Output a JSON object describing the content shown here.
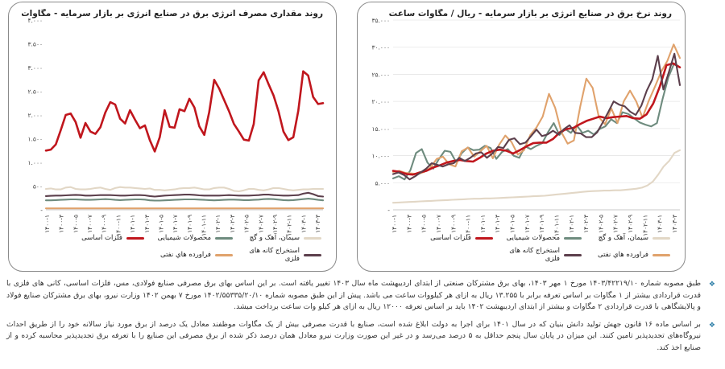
{
  "x_labels": [
    "۱۴۰۰-۱",
    "۱۴۰۰-۳",
    "۱۴۰۰-۵",
    "۱۴۰۰-۷",
    "۱۴۰۰-۹",
    "۱۴۰۰-۱۱",
    "۱۴۰۱-۱",
    "۱۴۰۱-۳",
    "۱۴۰۱-۵",
    "۱۴۰۱-۷",
    "۱۴۰۱-۹",
    "۱۴۰۱-۱۱",
    "۱۴۰۲-۱",
    "۱۴۰۲-۳",
    "۱۴۰۲-۵",
    "۱۴۰۲-۷",
    "۱۴۰۲-۹",
    "۱۴۰۲-۱۱",
    "۱۴۰۳-۱",
    "۱۴۰۳-۳"
  ],
  "colors": {
    "metals": "#c0161d",
    "cement": "#e2d7c6",
    "chem": "#6e8b7e",
    "mining": "#5c3f4c",
    "oil": "#e0a26c"
  },
  "chart_data": [
    {
      "type": "line",
      "title": "روند مقداری مصرف انرژی برق در صنایع انرژی بر بازار سرمایه  - مگاوات ساعت",
      "y_ticks": [
        "۴.۰۰۰",
        "۳.۵۰۰",
        "۳.۰۰۰",
        "۲.۵۰۰",
        "۲.۰۰۰",
        "۱.۵۰۰",
        "۱.۰۰۰",
        "۵۰۰",
        "-"
      ],
      "ylim": [
        0,
        4000
      ],
      "legend": [
        "سیمان، آهک و گچ",
        "محصولات شیمیایی",
        "فلزات اساسی",
        "استخراج کانه های فلزی",
        "فراورده هاي نفتی"
      ],
      "series": [
        {
          "name": "فلزات اساسی",
          "color_key": "metals",
          "values": [
            1250,
            1270,
            1380,
            1680,
            2000,
            2030,
            1850,
            1520,
            1830,
            1650,
            1600,
            1740,
            2050,
            2270,
            2220,
            1920,
            1820,
            2100,
            1900,
            1720,
            1780,
            1470,
            1230,
            1530,
            2100,
            1750,
            1730,
            2120,
            2080,
            2340,
            2160,
            1760,
            1580,
            2060,
            2740,
            2560,
            2320,
            2080,
            1810,
            1650,
            1480,
            1460,
            1810,
            2730,
            2900,
            2650,
            2410,
            2080,
            1650,
            1470,
            1530,
            2090,
            2920,
            2830,
            2380,
            2230,
            2250
          ]
        },
        {
          "name": "سیمان، آهک و گچ",
          "color_key": "cement",
          "values": [
            440,
            450,
            430,
            430,
            470,
            480,
            440,
            430,
            430,
            440,
            460,
            470,
            440,
            420,
            460,
            480,
            470,
            470,
            460,
            450,
            440,
            450,
            420,
            420,
            410,
            420,
            430,
            450,
            460,
            460,
            470,
            450,
            430,
            430,
            460,
            470,
            470,
            440,
            400,
            390,
            410,
            440,
            440,
            420,
            410,
            430,
            460,
            460,
            440,
            420,
            410,
            420,
            430,
            430,
            440,
            440,
            440
          ]
        },
        {
          "name": "استخراج کانه های فلزی",
          "color_key": "mining",
          "values": [
            290,
            295,
            300,
            300,
            305,
            310,
            315,
            310,
            300,
            300,
            305,
            310,
            310,
            310,
            305,
            300,
            300,
            305,
            310,
            310,
            305,
            290,
            280,
            290,
            300,
            305,
            310,
            315,
            320,
            320,
            315,
            305,
            300,
            300,
            300,
            300,
            305,
            310,
            305,
            300,
            300,
            300,
            305,
            310,
            320,
            320,
            310,
            305,
            300,
            300,
            305,
            310,
            340,
            360,
            330,
            290,
            280
          ]
        },
        {
          "name": "محصولات شیمیایی",
          "color_key": "chem",
          "values": [
            200,
            200,
            205,
            210,
            215,
            220,
            220,
            215,
            210,
            210,
            215,
            220,
            225,
            220,
            210,
            205,
            210,
            215,
            220,
            220,
            215,
            200,
            195,
            195,
            200,
            205,
            210,
            215,
            220,
            220,
            220,
            215,
            210,
            205,
            200,
            205,
            210,
            215,
            215,
            210,
            205,
            205,
            210,
            215,
            225,
            230,
            225,
            215,
            205,
            200,
            205,
            215,
            225,
            235,
            225,
            210,
            200
          ]
        },
        {
          "name": "فراورده هاي نفتی",
          "color_key": "oil",
          "values": [
            30,
            30,
            30,
            30,
            30,
            30,
            30,
            30,
            30,
            30,
            30,
            30,
            30,
            30,
            30,
            30,
            30,
            30,
            30,
            30,
            30,
            30,
            30,
            30,
            30,
            30,
            30,
            30,
            30,
            30,
            30,
            30,
            30,
            30,
            30,
            30,
            30,
            30,
            30,
            30,
            30,
            30,
            30,
            30,
            30,
            30,
            30,
            30,
            30,
            30,
            30,
            30,
            30,
            30,
            30,
            30,
            30
          ]
        }
      ]
    },
    {
      "type": "line",
      "title": "روند نرخ برق در صنایع انرژی بر بازار سرمایه  - ریال / مگاوات ساعت",
      "y_ticks": [
        "۳۵.۰۰۰",
        "۳۰.۰۰۰",
        "۲۵.۰۰۰",
        "۲۰.۰۰۰",
        "۱۵.۰۰۰",
        "۱۰.۰۰۰",
        "۵.۰۰۰",
        "-"
      ],
      "ylim": [
        0,
        35000
      ],
      "legend": [
        "سیمان، آهک و گچ",
        "محصولات شیمیایی",
        "فلزات اساسی",
        "فراورده هاي نفتی",
        "استخراج کانه های فلزی"
      ],
      "series": [
        {
          "name": "سیمان، آهک و گچ",
          "color_key": "cement",
          "values": [
            1300,
            1350,
            1400,
            1450,
            1500,
            1550,
            1600,
            1650,
            1700,
            1750,
            1800,
            1850,
            1900,
            1950,
            2000,
            2050,
            2050,
            2100,
            2100,
            2150,
            2200,
            2250,
            2300,
            2350,
            2400,
            2450,
            2500,
            2550,
            2600,
            2700,
            2800,
            2900,
            3000,
            3100,
            3200,
            3300,
            3400,
            3450,
            3500,
            3550,
            3550,
            3600,
            3600,
            3700,
            3800,
            3900,
            4100,
            4500,
            5200,
            6500,
            8000,
            9000,
            10500,
            11000
          ]
        },
        {
          "name": "محصولات شیمیایی",
          "color_key": "chem",
          "values": [
            5800,
            6200,
            5600,
            7300,
            10500,
            11200,
            8700,
            7600,
            9400,
            10900,
            10700,
            8800,
            10500,
            11500,
            11000,
            11100,
            11800,
            11400,
            9400,
            10700,
            11200,
            10000,
            9600,
            11700,
            11200,
            11800,
            12300,
            14300,
            16000,
            13800,
            14900,
            14200,
            15600,
            14200,
            14600,
            13900,
            14900,
            15400,
            16700,
            16000,
            18000,
            17700,
            16900,
            16100,
            15700,
            15400,
            16000,
            20500,
            24500,
            27000,
            26300
          ]
        },
        {
          "name": "فلزات اساسی",
          "color_key": "metals",
          "values": [
            7200,
            7000,
            6600,
            6500,
            6900,
            7200,
            7800,
            8200,
            8700,
            9000,
            9200,
            9000,
            8900,
            9600,
            10400,
            10900,
            11100,
            10900,
            10400,
            11000,
            11700,
            12300,
            12400,
            12400,
            13100,
            14300,
            14900,
            15100,
            15800,
            16400,
            16800,
            17200,
            16900,
            17100,
            17200,
            17300,
            16900,
            16800,
            17600,
            19600,
            22800,
            26700,
            27000,
            26300
          ]
        },
        {
          "name": "فراورده هاي نفتی",
          "color_key": "oil",
          "values": [
            7000,
            7200,
            6800,
            6700,
            6600,
            7000,
            7800,
            9400,
            9800,
            8400,
            8000,
            10800,
            11500,
            9800,
            10800,
            11800,
            9500,
            12000,
            13700,
            12500,
            10200,
            11000,
            13800,
            15200,
            17200,
            21400,
            18800,
            14300,
            12200,
            12800,
            19000,
            24200,
            22500,
            17100,
            15800,
            18700,
            16000,
            20000,
            22000,
            20000,
            17000,
            20100,
            22700,
            25500,
            27500,
            30500,
            28000
          ]
        },
        {
          "name": "استخراج کانه های فلزی",
          "color_key": "mining",
          "values": [
            6600,
            6900,
            6400,
            5600,
            6200,
            6900,
            7600,
            8600,
            8300,
            8000,
            8400,
            8600,
            9600,
            9000,
            9600,
            10400,
            10600,
            9600,
            10400,
            11600,
            11400,
            12900,
            13200,
            12100,
            12400,
            13600,
            14800,
            13600,
            13900,
            14600,
            13900,
            14900,
            15600,
            14200,
            14100,
            13400,
            13400,
            14300,
            16100,
            18000,
            20000,
            19400,
            19100,
            18100,
            17500,
            19200,
            22000,
            24100,
            28400,
            22200,
            25400,
            28800,
            23000
          ]
        }
      ]
    }
  ],
  "notes": [
    "طبق مصوبه شماره ۱۴۰۳/۴۲۲۱۹/۱۰ مورخ ۱ مهر ۱۴۰۳، بهای برق مشترکان صنعتی از ابتدای اردیبهشت ماه سال ۱۴۰۳ تغییر یافته است. بر این اساس بهای برق مصرفی صنایع فولادی، مس، فلزات اساسی، کانی های فلزی با قدرت قراردادی بیشتر از ۱ مگاوات بر اساس تعرفه برابر با ۱۳.۲۵۵ ریال به ازای هر کیلووات ساعت می باشد. پیش از این طبق مصوبه شماره ۱۴۰۲/۵۵۳۳۵/۲۰/۱۰ مورخ ۷ بهمن ۱۴۰۲ وزارت نیرو، بهای برق مشترکان صنایع فولاد و پالایشگاهی با قدرت قراردادی ۲ مگاوات و بیشتر از ابتدای اردیبهشت ۱۴۰۲ باید بر اساس تعرفه ۱۲۰۰۰ ریال به ازای هر کیلو وات ساعت برداخت میشد.",
    "بر اساس ماده ۱۶ قانون جهش تولید دانش بنیان که در سال ۱۴۰۱ برای اجرا به دولت ابلاغ شده است، صنایع با قدرت مصرفی بیش از یک مگاوات موظفند معادل یک درصد از برق مورد نیاز سالانه خود را از طریق احداث نیروگاه‌های تجدیدپذیر تامین کنند. این میزان در پایان سال پنجم حداقل به ۵ درصد می‌رسد و در غیر این صورت وزارت نیرو معادل همان درصد ذکر شده از برق مصرفی این صنایع را با تعرفه برق تجدیدپذیر محاسبه کرده و از صنایع اخذ کند."
  ]
}
